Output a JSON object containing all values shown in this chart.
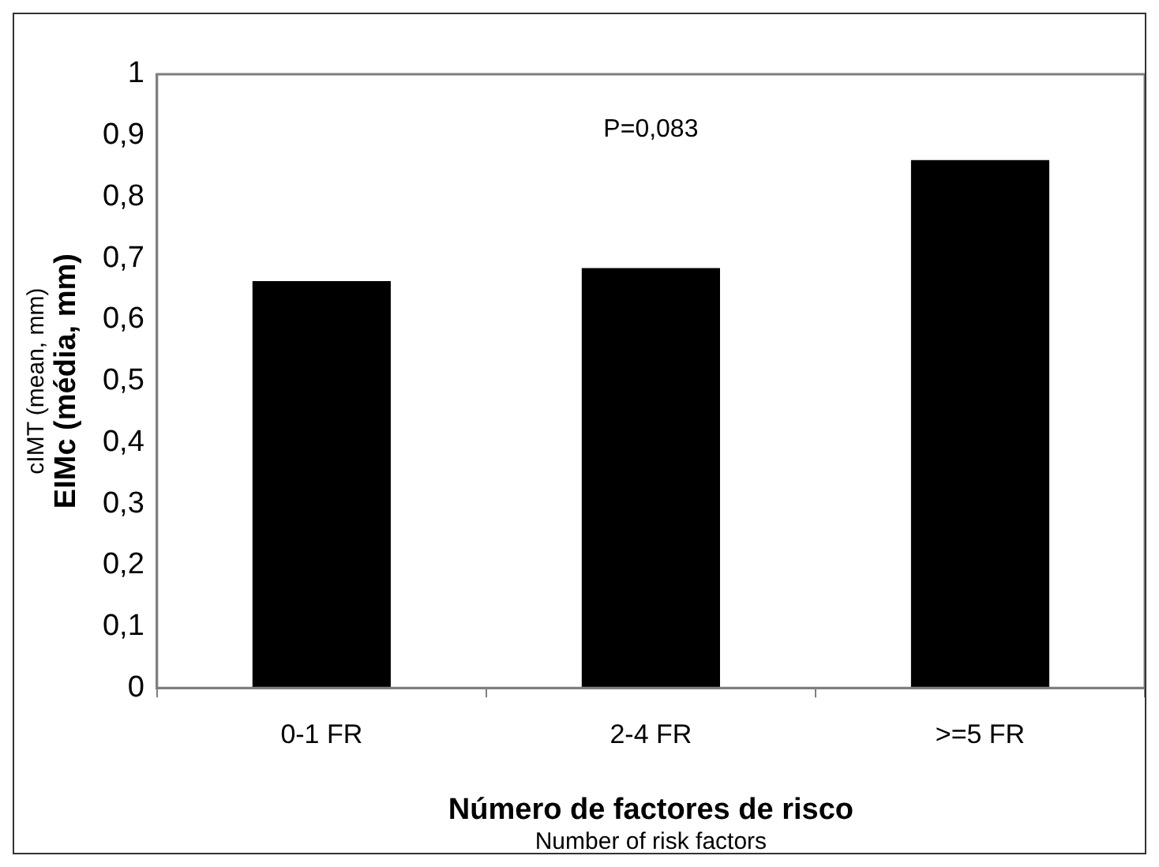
{
  "chart_data": {
    "type": "bar",
    "categories": [
      "0-1 FR",
      "2-4 FR",
      ">=5 FR"
    ],
    "values": [
      0.663,
      0.684,
      0.86
    ],
    "color": "#000000",
    "xlabel": "Número de factores de risco\nNumber of risk factors",
    "ylabel": "cIMT (mean, mm)\nEIMc (média, mm)",
    "annotations": [
      "P=0,083"
    ],
    "ylim": [
      0,
      1
    ],
    "yticks": [
      0,
      {
        "value": 0.1,
        "label": "0,1"
      },
      {
        "value": 0.2,
        "label": "0,2"
      },
      {
        "value": 0.3,
        "label": "0,3"
      },
      {
        "value": 0.4,
        "label": "0,4"
      },
      {
        "value": 0.5,
        "label": "0,5"
      },
      {
        "value": 0.6,
        "label": "0,6"
      },
      {
        "value": 0.7,
        "label": "0,7"
      },
      {
        "value": 0.8,
        "label": "0,8"
      },
      {
        "value": 0.9,
        "label": "0,9"
      },
      1
    ],
    "grid": false,
    "legend": false
  }
}
